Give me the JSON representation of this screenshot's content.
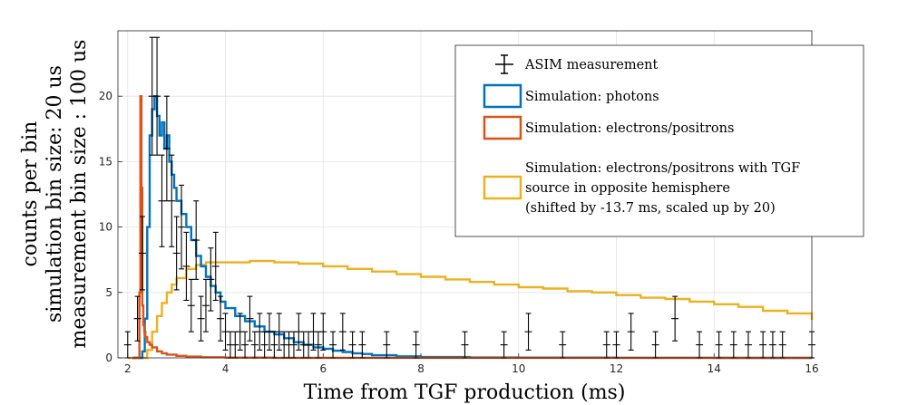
{
  "chart_data": {
    "type": "line",
    "title": "",
    "xlabel": "Time from TGF production (ms)",
    "ylabel_lines": [
      "counts per bin",
      "simulation bin size: 20 us",
      "measurement bin size : 100 us"
    ],
    "xlim": [
      1.8,
      16
    ],
    "ylim": [
      0,
      25
    ],
    "xticks": [
      2,
      4,
      6,
      8,
      10,
      12,
      14,
      16
    ],
    "yticks": [
      0,
      5,
      10,
      15,
      20
    ],
    "grid": true,
    "legend_position": "top-right",
    "colors": {
      "measurement": "#000000",
      "photons": "#0072BD",
      "electrons": "#D95319",
      "electrons_opposite": "#EDB120"
    },
    "legend": [
      {
        "key": "measurement",
        "lines": [
          "ASIM measurement"
        ]
      },
      {
        "key": "photons",
        "lines": [
          "Simulation: photons"
        ]
      },
      {
        "key": "electrons",
        "lines": [
          "Simulation: electrons/positrons"
        ]
      },
      {
        "key": "electrons_opposite",
        "lines": [
          "Simulation: electrons/positrons with TGF",
          "source in opposite hemisphere",
          "(shifted by -13.7 ms, scaled up by 20)"
        ]
      }
    ],
    "series": [
      {
        "key": "photons",
        "style": "stairs",
        "x": [
          2.1,
          2.2,
          2.3,
          2.35,
          2.4,
          2.45,
          2.5,
          2.55,
          2.6,
          2.65,
          2.7,
          2.75,
          2.8,
          2.85,
          2.9,
          2.95,
          3.0,
          3.1,
          3.2,
          3.3,
          3.4,
          3.5,
          3.6,
          3.7,
          3.8,
          3.9,
          4.0,
          4.2,
          4.4,
          4.6,
          4.8,
          5.0,
          5.2,
          5.4,
          5.6,
          5.8,
          6.0,
          6.2,
          6.4,
          6.6,
          6.8,
          7.0,
          7.5,
          8.0,
          9.0,
          10.0,
          12.0,
          14.0,
          16.0
        ],
        "y": [
          0,
          0,
          0.5,
          3,
          10,
          17,
          19,
          20,
          18.5,
          17,
          18,
          16,
          17,
          15,
          14,
          13,
          12,
          11,
          10,
          9,
          7.8,
          7,
          6.2,
          5.5,
          5,
          4.3,
          3.8,
          3.2,
          2.8,
          2.4,
          2.0,
          1.8,
          1.5,
          1.2,
          1.0,
          0.8,
          0.7,
          0.55,
          0.45,
          0.35,
          0.3,
          0.2,
          0.12,
          0.06,
          0.03,
          0.02,
          0.01,
          0.0,
          0.0
        ]
      },
      {
        "key": "electrons",
        "style": "stairs",
        "x": [
          2.1,
          2.2,
          2.24,
          2.26,
          2.28,
          2.3,
          2.32,
          2.34,
          2.36,
          2.4,
          2.45,
          2.5,
          2.6,
          2.7,
          2.8,
          3.0,
          3.2,
          3.5,
          4.0,
          5.0,
          16.0
        ],
        "y": [
          0,
          0,
          5,
          20,
          13,
          4,
          2.5,
          2,
          1.6,
          1.2,
          1.0,
          0.8,
          0.5,
          0.35,
          0.25,
          0.15,
          0.1,
          0.05,
          0.02,
          0.01,
          0.0
        ]
      },
      {
        "key": "electrons_opposite",
        "style": "stairs",
        "x": [
          2.0,
          2.3,
          2.4,
          2.5,
          2.6,
          2.7,
          2.8,
          2.9,
          3.0,
          3.2,
          3.4,
          3.6,
          3.8,
          4.0,
          4.5,
          5.0,
          5.5,
          6.0,
          6.5,
          7.0,
          7.5,
          8.0,
          8.5,
          9.0,
          9.5,
          10.0,
          10.5,
          11.0,
          11.5,
          12.0,
          12.5,
          13.0,
          13.5,
          14.0,
          14.5,
          15.0,
          15.5,
          16.0
        ],
        "y": [
          0,
          0,
          0.6,
          2,
          3.2,
          4.2,
          5,
          5.6,
          6.1,
          6.8,
          7.1,
          7.3,
          7.3,
          7.3,
          7.4,
          7.3,
          7.2,
          7.0,
          6.8,
          6.6,
          6.4,
          6.2,
          6.0,
          5.8,
          5.6,
          5.4,
          5.3,
          5.1,
          5.0,
          4.8,
          4.6,
          4.5,
          4.3,
          4.1,
          3.9,
          3.6,
          3.4,
          2.9
        ]
      }
    ],
    "measurement": {
      "key": "measurement",
      "x": [
        2.0,
        2.2,
        2.3,
        2.5,
        2.6,
        2.7,
        2.8,
        2.9,
        3.0,
        3.1,
        3.2,
        3.3,
        3.4,
        3.5,
        3.6,
        3.7,
        3.8,
        3.9,
        4.0,
        4.1,
        4.2,
        4.3,
        4.4,
        4.5,
        4.6,
        4.7,
        4.8,
        4.9,
        5.0,
        5.1,
        5.2,
        5.3,
        5.4,
        5.5,
        5.6,
        5.7,
        5.8,
        5.9,
        6.0,
        6.2,
        6.4,
        6.6,
        6.8,
        7.3,
        7.9,
        8.9,
        9.7,
        10.2,
        10.9,
        11.8,
        12.0,
        12.3,
        12.8,
        13.2,
        13.7,
        14.1,
        14.4,
        14.7,
        15.0,
        15.2,
        15.4,
        16.0
      ],
      "y": [
        1,
        3,
        8,
        20,
        20,
        12,
        16,
        12,
        8,
        10,
        7,
        4,
        9,
        3,
        4,
        6,
        7,
        3,
        2,
        1,
        1,
        2,
        1,
        3,
        1,
        2,
        1,
        2,
        1,
        2,
        1,
        1,
        1,
        2,
        1,
        1,
        2,
        1,
        2,
        1,
        2,
        1,
        1,
        1,
        1,
        1,
        1,
        2,
        1,
        1,
        1,
        2,
        1,
        3,
        1,
        1,
        1,
        1,
        1,
        1,
        1,
        1
      ],
      "err": [
        1,
        1.7,
        2.8,
        4.5,
        4.5,
        3.5,
        4,
        3.5,
        2.8,
        3.2,
        2.6,
        2,
        3,
        1.7,
        2,
        2.4,
        2.6,
        1.7,
        1.4,
        1,
        1,
        1.4,
        1,
        1.7,
        1,
        1.4,
        1,
        1.4,
        1,
        1.4,
        1,
        1,
        1,
        1.4,
        1,
        1,
        1.4,
        1,
        1.4,
        1,
        1.4,
        1,
        1,
        1,
        1,
        1,
        1,
        1.4,
        1,
        1,
        1,
        1.4,
        1,
        1.7,
        1,
        1,
        1,
        1,
        1,
        1,
        1,
        1
      ]
    }
  }
}
